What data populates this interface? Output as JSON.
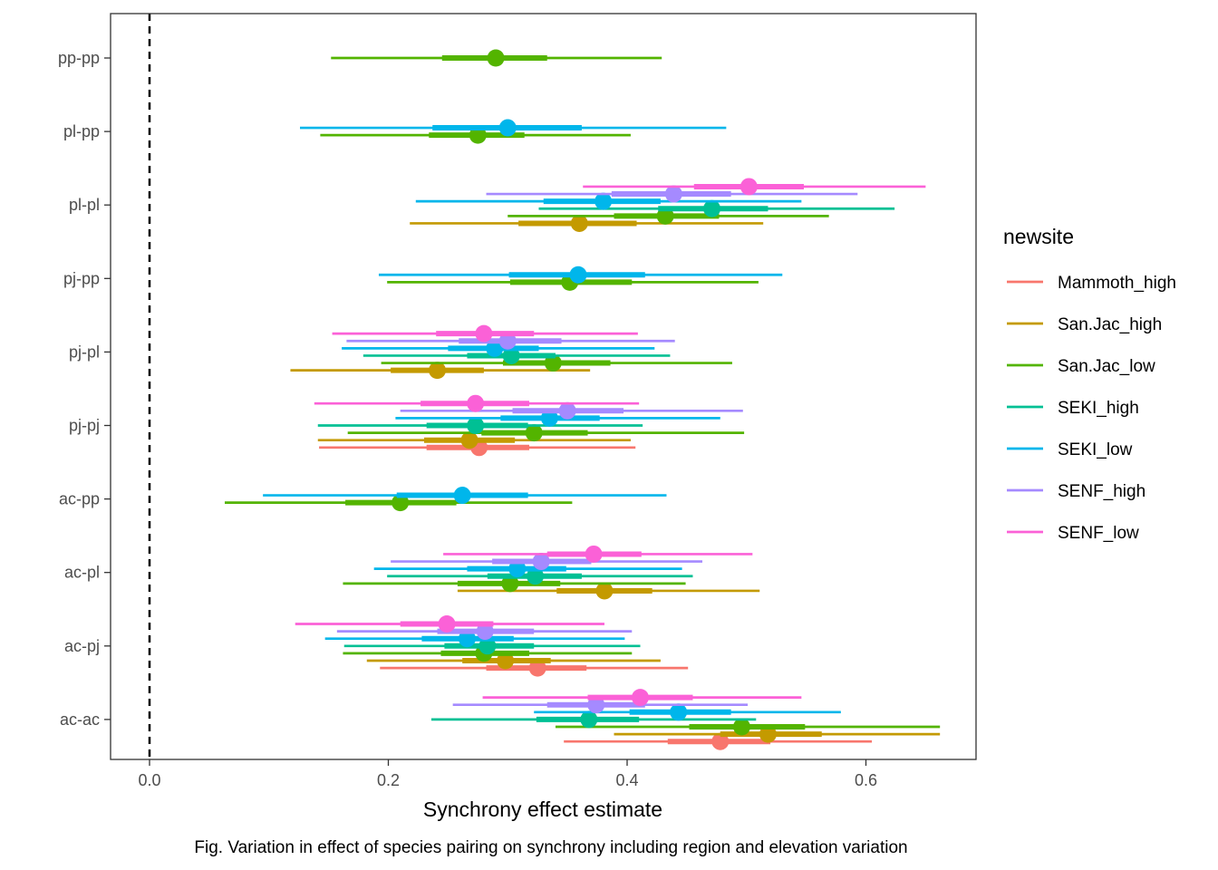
{
  "chart_data": {
    "type": "scatter",
    "subtype": "interval-plot",
    "xlabel": "Synchrony effect estimate",
    "ylabel": "",
    "caption": "Fig. Variation in effect of species pairing on synchrony including region and elevation variation",
    "xlim": [
      -0.033,
      0.69
    ],
    "x_ticks": [
      0.0,
      0.2,
      0.4,
      0.6
    ],
    "x_tick_labels": [
      "0.0",
      "0.2",
      "0.4",
      "0.6"
    ],
    "reference_line": {
      "x": 0.0,
      "style": "dashed",
      "color": "#000000"
    },
    "grid": false,
    "categories": [
      "pp-pp",
      "pl-pp",
      "pl-pl",
      "pj-pp",
      "pj-pl",
      "pj-pj",
      "ac-pp",
      "ac-pl",
      "ac-pj",
      "ac-ac"
    ],
    "legend": {
      "title": "newsite",
      "placement": "right",
      "entries": [
        {
          "name": "Mammoth_high",
          "color": "#F8766D"
        },
        {
          "name": "San.Jac_high",
          "color": "#C49A00"
        },
        {
          "name": "San.Jac_low",
          "color": "#53B400"
        },
        {
          "name": "SEKI_high",
          "color": "#00C094"
        },
        {
          "name": "SEKI_low",
          "color": "#00B6EB"
        },
        {
          "name": "SENF_high",
          "color": "#A58AFF"
        },
        {
          "name": "SENF_low",
          "color": "#FB61D7"
        }
      ]
    },
    "series": [
      {
        "name": "Mammoth_high",
        "color": "#F8766D",
        "points": [
          {
            "category": "pj-pj",
            "estimate": 0.276,
            "inner": [
              0.232,
              0.318
            ],
            "outer": [
              0.142,
              0.407
            ]
          },
          {
            "category": "ac-pj",
            "estimate": 0.325,
            "inner": [
              0.282,
              0.366
            ],
            "outer": [
              0.193,
              0.451
            ]
          },
          {
            "category": "ac-ac",
            "estimate": 0.478,
            "inner": [
              0.434,
              0.52
            ],
            "outer": [
              0.347,
              0.605
            ]
          }
        ]
      },
      {
        "name": "San.Jac_high",
        "color": "#C49A00",
        "points": [
          {
            "category": "pl-pl",
            "estimate": 0.36,
            "inner": [
              0.309,
              0.408
            ],
            "outer": [
              0.218,
              0.514
            ]
          },
          {
            "category": "pj-pl",
            "estimate": 0.241,
            "inner": [
              0.202,
              0.28
            ],
            "outer": [
              0.118,
              0.369
            ]
          },
          {
            "category": "pj-pj",
            "estimate": 0.268,
            "inner": [
              0.23,
              0.306
            ],
            "outer": [
              0.141,
              0.403
            ]
          },
          {
            "category": "ac-pl",
            "estimate": 0.381,
            "inner": [
              0.341,
              0.421
            ],
            "outer": [
              0.258,
              0.511
            ]
          },
          {
            "category": "ac-pj",
            "estimate": 0.298,
            "inner": [
              0.262,
              0.336
            ],
            "outer": [
              0.182,
              0.428
            ]
          },
          {
            "category": "ac-ac",
            "estimate": 0.518,
            "inner": [
              0.478,
              0.563
            ],
            "outer": [
              0.389,
              0.662
            ]
          }
        ]
      },
      {
        "name": "San.Jac_low",
        "color": "#53B400",
        "points": [
          {
            "category": "pp-pp",
            "estimate": 0.29,
            "inner": [
              0.245,
              0.333
            ],
            "outer": [
              0.152,
              0.429
            ]
          },
          {
            "category": "pl-pp",
            "estimate": 0.275,
            "inner": [
              0.234,
              0.314
            ],
            "outer": [
              0.143,
              0.403
            ]
          },
          {
            "category": "pl-pl",
            "estimate": 0.432,
            "inner": [
              0.389,
              0.477
            ],
            "outer": [
              0.3,
              0.569
            ]
          },
          {
            "category": "pj-pp",
            "estimate": 0.352,
            "inner": [
              0.302,
              0.404
            ],
            "outer": [
              0.199,
              0.51
            ]
          },
          {
            "category": "pj-pl",
            "estimate": 0.338,
            "inner": [
              0.296,
              0.386
            ],
            "outer": [
              0.194,
              0.488
            ]
          },
          {
            "category": "pj-pj",
            "estimate": 0.322,
            "inner": [
              0.278,
              0.367
            ],
            "outer": [
              0.166,
              0.498
            ]
          },
          {
            "category": "ac-pp",
            "estimate": 0.21,
            "inner": [
              0.164,
              0.257
            ],
            "outer": [
              0.063,
              0.354
            ]
          },
          {
            "category": "ac-pl",
            "estimate": 0.302,
            "inner": [
              0.258,
              0.344
            ],
            "outer": [
              0.162,
              0.449
            ]
          },
          {
            "category": "ac-pj",
            "estimate": 0.28,
            "inner": [
              0.244,
              0.318
            ],
            "outer": [
              0.162,
              0.404
            ]
          },
          {
            "category": "ac-ac",
            "estimate": 0.496,
            "inner": [
              0.452,
              0.549
            ],
            "outer": [
              0.34,
              0.662
            ]
          }
        ]
      },
      {
        "name": "SEKI_high",
        "color": "#00C094",
        "points": [
          {
            "category": "pl-pl",
            "estimate": 0.471,
            "inner": [
              0.426,
              0.518
            ],
            "outer": [
              0.326,
              0.624
            ]
          },
          {
            "category": "pj-pl",
            "estimate": 0.303,
            "inner": [
              0.266,
              0.34
            ],
            "outer": [
              0.179,
              0.436
            ]
          },
          {
            "category": "pj-pj",
            "estimate": 0.273,
            "inner": [
              0.232,
              0.317
            ],
            "outer": [
              0.141,
              0.413
            ]
          },
          {
            "category": "ac-pl",
            "estimate": 0.323,
            "inner": [
              0.283,
              0.362
            ],
            "outer": [
              0.199,
              0.455
            ]
          },
          {
            "category": "ac-pj",
            "estimate": 0.283,
            "inner": [
              0.247,
              0.322
            ],
            "outer": [
              0.163,
              0.411
            ]
          },
          {
            "category": "ac-ac",
            "estimate": 0.368,
            "inner": [
              0.324,
              0.41
            ],
            "outer": [
              0.236,
              0.508
            ]
          }
        ]
      },
      {
        "name": "SEKI_low",
        "color": "#00B6EB",
        "points": [
          {
            "category": "pl-pp",
            "estimate": 0.3,
            "inner": [
              0.237,
              0.362
            ],
            "outer": [
              0.126,
              0.483
            ]
          },
          {
            "category": "pl-pl",
            "estimate": 0.38,
            "inner": [
              0.33,
              0.428
            ],
            "outer": [
              0.223,
              0.546
            ]
          },
          {
            "category": "pj-pp",
            "estimate": 0.359,
            "inner": [
              0.301,
              0.415
            ],
            "outer": [
              0.192,
              0.53
            ]
          },
          {
            "category": "pj-pl",
            "estimate": 0.289,
            "inner": [
              0.25,
              0.326
            ],
            "outer": [
              0.161,
              0.423
            ]
          },
          {
            "category": "pj-pj",
            "estimate": 0.335,
            "inner": [
              0.294,
              0.377
            ],
            "outer": [
              0.206,
              0.478
            ]
          },
          {
            "category": "ac-pp",
            "estimate": 0.262,
            "inner": [
              0.207,
              0.317
            ],
            "outer": [
              0.095,
              0.433
            ]
          },
          {
            "category": "ac-pl",
            "estimate": 0.308,
            "inner": [
              0.266,
              0.349
            ],
            "outer": [
              0.188,
              0.446
            ]
          },
          {
            "category": "ac-pj",
            "estimate": 0.266,
            "inner": [
              0.228,
              0.305
            ],
            "outer": [
              0.147,
              0.398
            ]
          },
          {
            "category": "ac-ac",
            "estimate": 0.443,
            "inner": [
              0.402,
              0.487
            ],
            "outer": [
              0.322,
              0.579
            ]
          }
        ]
      },
      {
        "name": "SENF_high",
        "color": "#A58AFF",
        "points": [
          {
            "category": "pl-pl",
            "estimate": 0.439,
            "inner": [
              0.387,
              0.487
            ],
            "outer": [
              0.282,
              0.593
            ]
          },
          {
            "category": "pj-pl",
            "estimate": 0.3,
            "inner": [
              0.259,
              0.345
            ],
            "outer": [
              0.165,
              0.44
            ]
          },
          {
            "category": "pj-pj",
            "estimate": 0.35,
            "inner": [
              0.304,
              0.397
            ],
            "outer": [
              0.21,
              0.497
            ]
          },
          {
            "category": "ac-pl",
            "estimate": 0.328,
            "inner": [
              0.287,
              0.37
            ],
            "outer": [
              0.202,
              0.463
            ]
          },
          {
            "category": "ac-pj",
            "estimate": 0.281,
            "inner": [
              0.241,
              0.322
            ],
            "outer": [
              0.157,
              0.404
            ]
          },
          {
            "category": "ac-ac",
            "estimate": 0.374,
            "inner": [
              0.333,
              0.415
            ],
            "outer": [
              0.254,
              0.501
            ]
          }
        ]
      },
      {
        "name": "SENF_low",
        "color": "#FB61D7",
        "points": [
          {
            "category": "pl-pl",
            "estimate": 0.502,
            "inner": [
              0.456,
              0.548
            ],
            "outer": [
              0.363,
              0.65
            ]
          },
          {
            "category": "pj-pl",
            "estimate": 0.28,
            "inner": [
              0.24,
              0.322
            ],
            "outer": [
              0.153,
              0.409
            ]
          },
          {
            "category": "pj-pj",
            "estimate": 0.273,
            "inner": [
              0.227,
              0.318
            ],
            "outer": [
              0.138,
              0.41
            ]
          },
          {
            "category": "ac-pl",
            "estimate": 0.372,
            "inner": [
              0.333,
              0.412
            ],
            "outer": [
              0.246,
              0.505
            ]
          },
          {
            "category": "ac-pj",
            "estimate": 0.249,
            "inner": [
              0.21,
              0.288
            ],
            "outer": [
              0.122,
              0.381
            ]
          },
          {
            "category": "ac-ac",
            "estimate": 0.411,
            "inner": [
              0.367,
              0.455
            ],
            "outer": [
              0.279,
              0.546
            ]
          }
        ]
      }
    ]
  }
}
